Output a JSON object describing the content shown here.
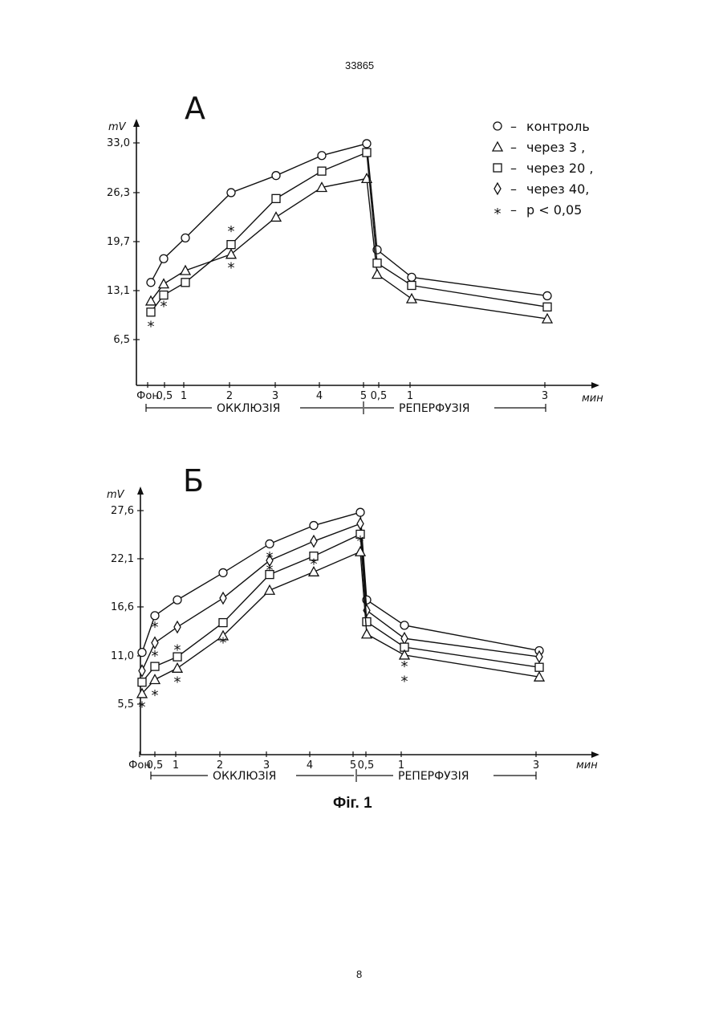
{
  "header": {
    "page_top": "33865",
    "page_bottom": "8",
    "caption": "Фіг. 1"
  },
  "chart_data": [
    {
      "type": "line",
      "panel": "А",
      "ylabel": "mV",
      "xlabel": "мин",
      "y_ticks": [
        "6,5",
        "13,1",
        "19,7",
        "26,3",
        "33,0"
      ],
      "y_tick_values": [
        6.5,
        13.1,
        19.7,
        26.3,
        33.0
      ],
      "ylim": [
        0,
        35
      ],
      "x_tick_labels": [
        "Фон",
        "0,5",
        "1",
        "2",
        "3",
        "4",
        "5",
        "0,5",
        "1",
        "3"
      ],
      "phases": [
        "ОККЛЮЗІЯ",
        "РЕПЕРФУЗІЯ"
      ],
      "legend": [
        {
          "symbol": "circle",
          "label": "контроль"
        },
        {
          "symbol": "triangle",
          "label": "через 3 ,"
        },
        {
          "symbol": "square",
          "label": "через 20 ,"
        },
        {
          "symbol": "diamond",
          "label": "через 40,"
        },
        {
          "symbol": "star",
          "label": "p < 0,05"
        }
      ],
      "series": [
        {
          "symbol": "circle",
          "values": [
            14.2,
            17.4,
            20.2,
            26.3,
            28.6,
            31.3,
            32.9,
            18.6,
            14.9,
            12.4
          ]
        },
        {
          "symbol": "triangle",
          "values": [
            11.7,
            14.0,
            15.8,
            18.0,
            23.0,
            27.0,
            28.2,
            15.3,
            12.0,
            9.3
          ]
        },
        {
          "symbol": "square",
          "values": [
            10.2,
            12.5,
            14.2,
            19.3,
            25.5,
            29.2,
            31.7,
            16.8,
            13.8,
            10.9
          ]
        }
      ],
      "significance": [
        {
          "x": 0,
          "y": 8.3
        },
        {
          "x": 1,
          "y": 11.0
        },
        {
          "x": 3,
          "y": 21.1
        },
        {
          "x": 3,
          "y": 16.2
        }
      ]
    },
    {
      "type": "line",
      "panel": "Б",
      "ylabel": "mV",
      "xlabel": "мин",
      "y_ticks": [
        "5,5",
        "11,0",
        "16,6",
        "22,1",
        "27,6"
      ],
      "y_tick_values": [
        5.5,
        11.0,
        16.6,
        22.1,
        27.6
      ],
      "ylim": [
        0,
        30
      ],
      "x_tick_labels": [
        "Фон",
        "0,5",
        "1",
        "2",
        "3",
        "4",
        "5",
        "0,5",
        "1",
        "3"
      ],
      "phases": [
        "ОККЛЮЗІЯ",
        "РЕПЕРФУЗІЯ"
      ],
      "series": [
        {
          "symbol": "circle",
          "values": [
            11.4,
            15.6,
            17.4,
            20.5,
            23.8,
            25.9,
            27.4,
            17.4,
            14.5,
            11.6
          ]
        },
        {
          "symbol": "diamond",
          "values": [
            9.3,
            12.5,
            14.3,
            17.6,
            21.9,
            24.1,
            26.1,
            16.2,
            13.0,
            10.9
          ]
        },
        {
          "symbol": "square",
          "values": [
            8.0,
            9.8,
            10.9,
            14.8,
            20.3,
            22.4,
            24.9,
            14.9,
            12.0,
            9.7
          ]
        },
        {
          "symbol": "triangle",
          "values": [
            6.7,
            8.3,
            9.6,
            13.3,
            18.5,
            20.6,
            22.9,
            13.5,
            11.1,
            8.6
          ]
        }
      ],
      "significance": [
        {
          "x": 0,
          "y": 5.2
        },
        {
          "x": 1,
          "y": 14.3
        },
        {
          "x": 1,
          "y": 11.0
        },
        {
          "x": 1,
          "y": 6.5
        },
        {
          "x": 2,
          "y": 11.7
        },
        {
          "x": 2,
          "y": 8.0
        },
        {
          "x": 3,
          "y": 12.5
        },
        {
          "x": 4,
          "y": 22.3
        },
        {
          "x": 4,
          "y": 20.8
        },
        {
          "x": 5,
          "y": 21.5
        },
        {
          "x": 6,
          "y": 24.1
        },
        {
          "x": 8,
          "y": 9.8
        },
        {
          "x": 8,
          "y": 8.1
        }
      ]
    }
  ]
}
